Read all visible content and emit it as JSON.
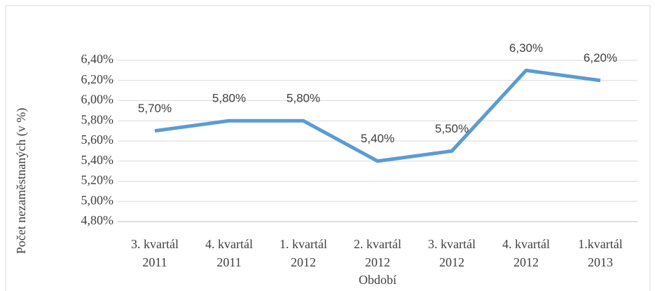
{
  "chart_data": {
    "type": "line",
    "y_label": "Počet nezaměstnaných (v %)",
    "x_label": "Období",
    "categories": [
      [
        "3. kvartál",
        "2011"
      ],
      [
        "4. kvartál",
        "2011"
      ],
      [
        "1. kvartál",
        "2012"
      ],
      [
        "2. kvartál",
        "2012"
      ],
      [
        "3. kvartál",
        "2012"
      ],
      [
        "4. kvartál",
        "2012"
      ],
      [
        "1.kvartál",
        "2013"
      ]
    ],
    "series": [
      {
        "color": "#5b9bd5",
        "values": [
          5.7,
          5.8,
          5.8,
          5.4,
          5.5,
          6.3,
          6.2
        ],
        "value_labels": [
          "5,70%",
          "5,80%",
          "5,80%",
          "5,40%",
          "5,50%",
          "6,30%",
          "6,20%"
        ]
      }
    ],
    "ylim": [
      4.8,
      6.4
    ],
    "yticks": [
      {
        "value": 4.8,
        "label": "4,80%"
      },
      {
        "value": 5.0,
        "label": "5,00%"
      },
      {
        "value": 5.2,
        "label": "5,20%"
      },
      {
        "value": 5.4,
        "label": "5,40%"
      },
      {
        "value": 5.6,
        "label": "5,60%"
      },
      {
        "value": 5.8,
        "label": "5,80%"
      },
      {
        "value": 6.0,
        "label": "6,00%"
      },
      {
        "value": 6.2,
        "label": "6,20%"
      },
      {
        "value": 6.4,
        "label": "6,40%"
      }
    ],
    "grid": true
  }
}
